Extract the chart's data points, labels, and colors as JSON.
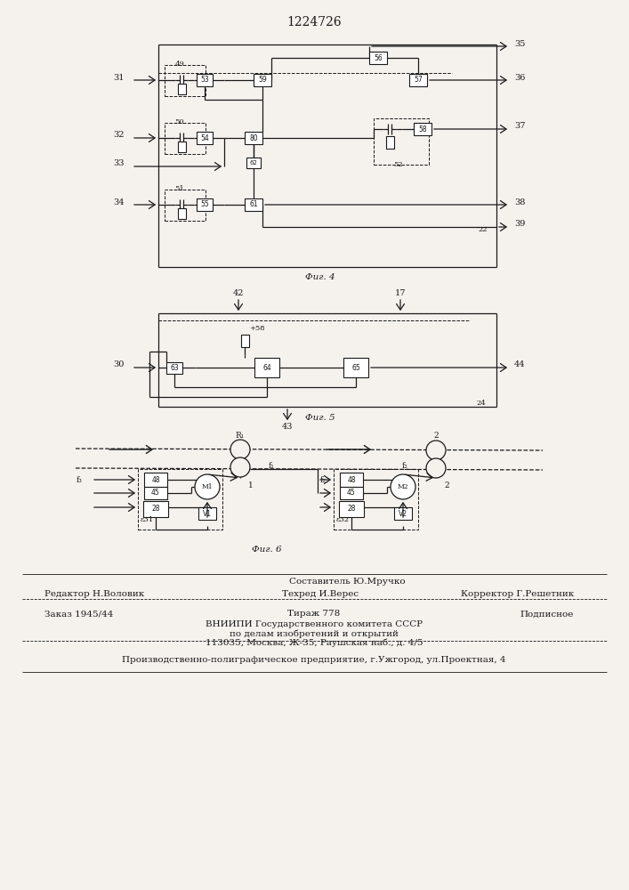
{
  "title": "1224726",
  "fig4_label": "Фиг. 4",
  "fig5_label": "Фиг. 5",
  "fig6_label": "Фиг. 6",
  "bg_color": "#f5f2ee",
  "line_color": "#1a1a1a"
}
